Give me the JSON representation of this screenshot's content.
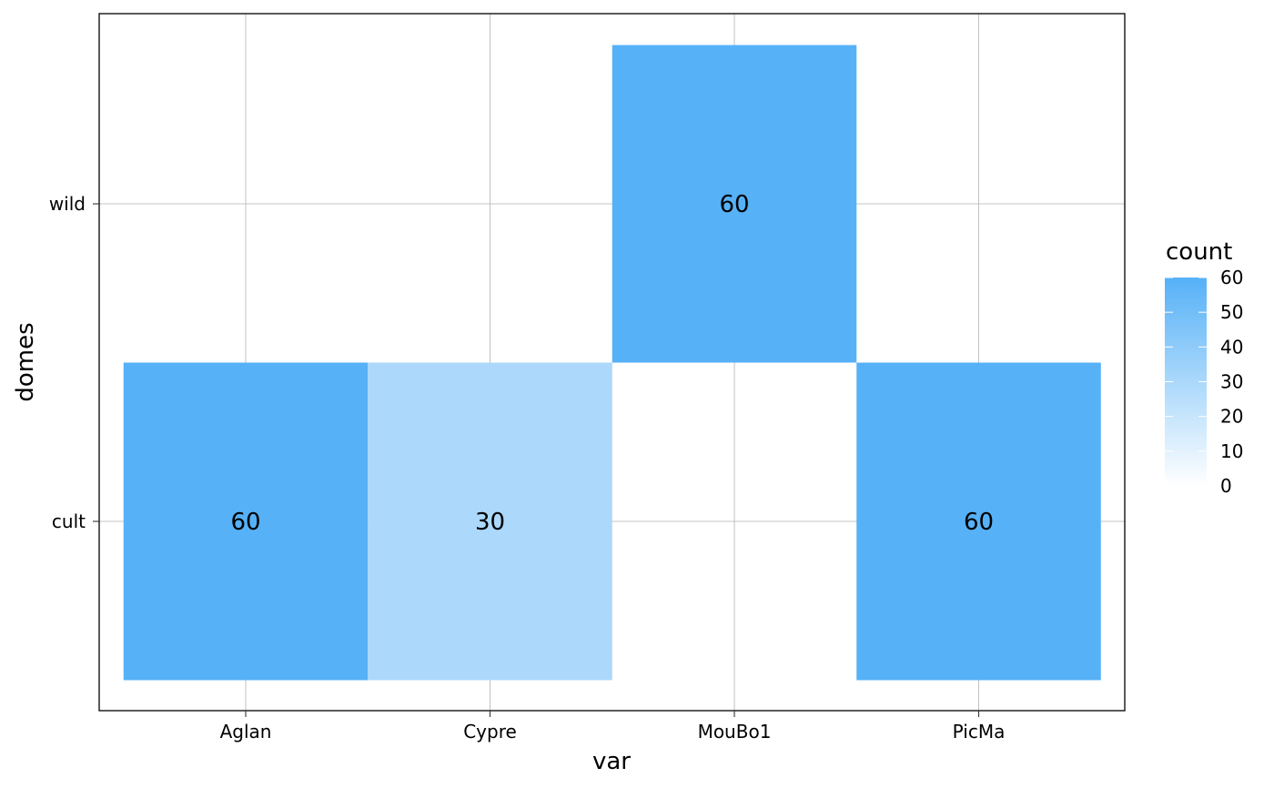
{
  "chart_data": {
    "type": "heatmap",
    "xlabel": "var",
    "ylabel": "domes",
    "x_categories": [
      "Aglan",
      "Cypre",
      "MouBo1",
      "PicMa"
    ],
    "y_categories": [
      "cult",
      "wild"
    ],
    "cells": [
      {
        "x": "Aglan",
        "y": "cult",
        "value": 60,
        "label": "60"
      },
      {
        "x": "Cypre",
        "y": "cult",
        "value": 30,
        "label": "30"
      },
      {
        "x": "MouBo1",
        "y": "wild",
        "value": 60,
        "label": "60"
      },
      {
        "x": "PicMa",
        "y": "cult",
        "value": 60,
        "label": "60"
      }
    ],
    "legend": {
      "title": "count",
      "min": 0,
      "max": 60,
      "ticks": [
        "0",
        "10",
        "20",
        "30",
        "40",
        "50",
        "60"
      ],
      "low_color": "#ffffff",
      "high_color": "#56b1f7",
      "placement": "right"
    },
    "grid": true
  }
}
